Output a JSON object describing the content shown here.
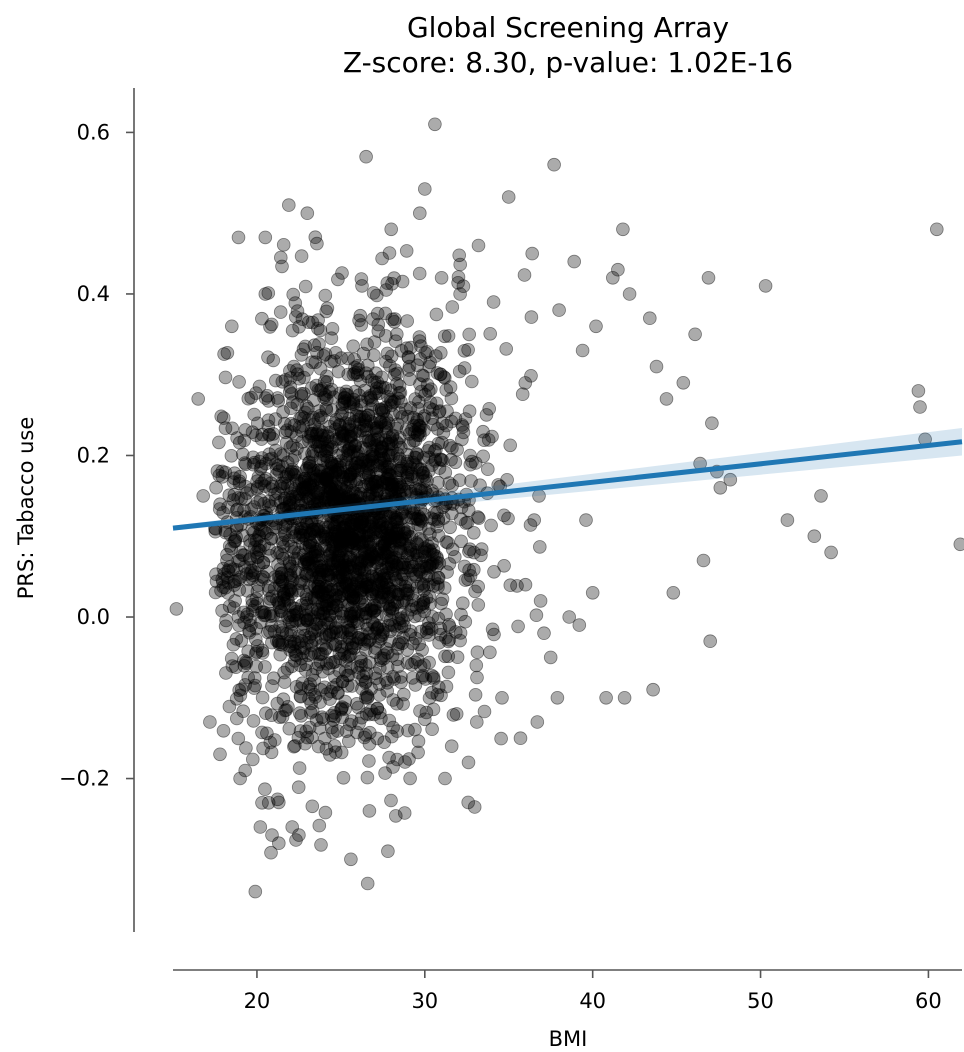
{
  "chart_data": {
    "type": "scatter",
    "title": "Global Screening Array",
    "subtitle": "Z-score: 8.30, p-value: 1.02E-16",
    "xlabel": "BMI",
    "ylabel": "PRS: Tabacco use",
    "xlim": [
      15,
      62
    ],
    "ylim": [
      -0.39,
      0.655
    ],
    "x_ticks": [
      {
        "value": 20,
        "label": "20"
      },
      {
        "value": 30,
        "label": "30"
      },
      {
        "value": 40,
        "label": "40"
      },
      {
        "value": 50,
        "label": "50"
      },
      {
        "value": 60,
        "label": "60"
      }
    ],
    "y_ticks": [
      {
        "value": -0.2,
        "label": "−0.2"
      },
      {
        "value": 0.0,
        "label": "0.0"
      },
      {
        "value": 0.2,
        "label": "0.2"
      },
      {
        "value": 0.4,
        "label": "0.4"
      },
      {
        "value": 0.6,
        "label": "0.6"
      }
    ],
    "grid": false,
    "colors": {
      "points": "#000000",
      "regression": "#1f77b4",
      "ci_band": "#1f77b4"
    },
    "points": {
      "x": [
        15.2,
        16.8,
        16.5,
        17.5,
        18.0,
        18.7,
        18.9,
        17.2,
        17.8,
        19.3,
        19.9,
        20.2,
        20.7,
        20.9,
        21.3,
        20.5,
        22.5,
        21.9,
        23.0,
        26.5,
        26.6,
        26.7,
        25.6,
        27.8,
        30.6,
        30.0,
        29.7,
        28.0,
        31.0,
        32.1,
        33.2,
        34.1,
        35.0,
        36.4,
        37.7,
        38.9,
        38.0,
        39.4,
        41.2,
        41.8,
        41.5,
        42.2,
        40.2,
        43.4,
        43.8,
        44.4,
        45.4,
        46.1,
        46.4,
        46.9,
        47.1,
        47.4,
        47.6,
        48.2,
        46.6,
        50.3,
        51.6,
        53.2,
        53.6,
        54.2,
        59.4,
        59.5,
        59.8,
        60.5,
        61.9,
        40.8,
        41.9,
        43.6,
        44.8,
        47.0,
        36.7,
        37.9,
        37.1,
        35.7,
        34.6,
        33.1,
        32.6,
        31.2,
        31.6,
        31.9,
        36.0,
        36.9,
        37.5,
        38.6,
        39.2,
        40.0,
        39.6,
        36.8,
        32.7,
        22.1,
        20.3,
        19.0,
        18.5,
        20.5
      ],
      "y": [
        0.01,
        0.15,
        0.27,
        0.11,
        0.06,
        0.02,
        0.47,
        -0.13,
        -0.17,
        -0.19,
        -0.34,
        -0.26,
        -0.23,
        -0.27,
        -0.28,
        0.47,
        -0.27,
        0.51,
        0.5,
        0.57,
        -0.33,
        -0.24,
        -0.3,
        -0.29,
        0.61,
        0.53,
        0.5,
        0.48,
        0.42,
        0.4,
        0.46,
        0.39,
        0.52,
        0.45,
        0.56,
        0.44,
        0.38,
        0.33,
        0.42,
        0.48,
        0.43,
        0.4,
        0.36,
        0.37,
        0.31,
        0.27,
        0.29,
        0.35,
        0.19,
        0.42,
        0.24,
        0.18,
        0.16,
        0.17,
        0.07,
        0.41,
        0.12,
        0.1,
        0.15,
        0.08,
        0.28,
        0.26,
        0.22,
        0.48,
        0.09,
        -0.1,
        -0.1,
        -0.09,
        0.03,
        -0.03,
        -0.13,
        -0.1,
        -0.02,
        -0.15,
        -0.1,
        -0.13,
        -0.18,
        -0.2,
        -0.16,
        -0.12,
        0.04,
        0.02,
        -0.05,
        0.0,
        -0.01,
        0.03,
        0.12,
        0.15,
        0.2,
        -0.26,
        -0.23,
        -0.2,
        0.36,
        0.4
      ]
    },
    "cluster": {
      "cx": 25.5,
      "cy": 0.11,
      "sx": 3.6,
      "sy": 0.125,
      "n": 2600
    },
    "regression": {
      "x": [
        15,
        62
      ],
      "y": [
        0.11,
        0.217
      ],
      "ci_halfwidth": [
        0.003,
        0.017
      ]
    }
  }
}
